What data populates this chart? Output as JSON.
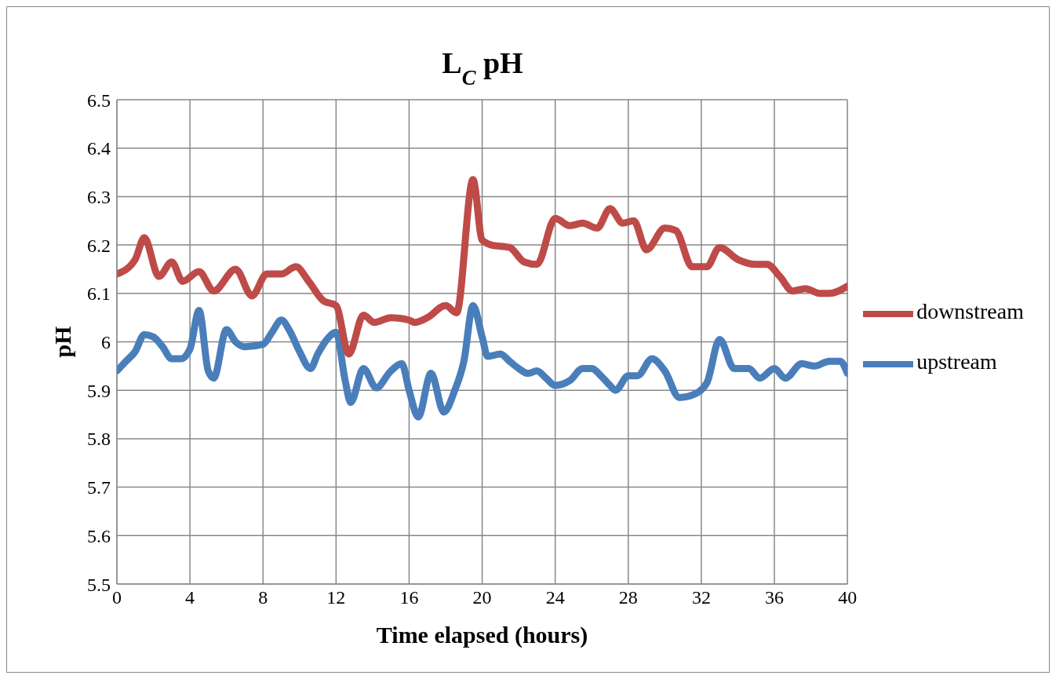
{
  "chart_data": {
    "type": "line",
    "title": "L$_{C}$ pH",
    "xlabel": "Time elapsed (hours)",
    "ylabel": "pH",
    "xlim": [
      0,
      40
    ],
    "xticks": [
      0,
      4,
      8,
      12,
      16,
      20,
      24,
      28,
      32,
      36,
      40
    ],
    "ylim": [
      5.5,
      6.5
    ],
    "yticks": [
      5.5,
      5.6,
      5.7,
      5.8,
      5.9,
      6,
      6.1,
      6.2,
      6.3,
      6.4,
      6.5
    ],
    "grid": true,
    "legend": "right",
    "marker": "none",
    "line_style": "solid",
    "series": [
      {
        "name": "upstream",
        "color": "#4a7ebb",
        "x": [
          0,
          0.5,
          1,
          1.5,
          2,
          2.5,
          3,
          3.5,
          4,
          4.5,
          5,
          5.3,
          6,
          6.5,
          7,
          8,
          8.5,
          9,
          9.5,
          10,
          10.6,
          11,
          11.5,
          12,
          12.5,
          12.8,
          13.5,
          14.2,
          15,
          15.6,
          16,
          16.5,
          17.2,
          17.9,
          18.5,
          19,
          19.5,
          20,
          20.3,
          21,
          21.5,
          22,
          22.5,
          23,
          23.5,
          24,
          24.8,
          25.5,
          26,
          26.5,
          27,
          27.3,
          28,
          28.5,
          29.3,
          30,
          30.8,
          31.5,
          32.3,
          33,
          33.8,
          34.6,
          35.2,
          36,
          36.6,
          37.5,
          38.2,
          39,
          39.6,
          40
        ],
        "values": [
          5.94,
          5.96,
          5.98,
          6.015,
          6.01,
          5.99,
          5.965,
          5.965,
          5.985,
          6.065,
          5.94,
          5.925,
          6.025,
          6.0,
          5.99,
          5.995,
          6.02,
          6.045,
          6.02,
          5.98,
          5.945,
          5.975,
          6.005,
          6.02,
          5.92,
          5.875,
          5.945,
          5.905,
          5.94,
          5.955,
          5.9,
          5.845,
          5.935,
          5.855,
          5.9,
          5.96,
          6.075,
          6.01,
          5.97,
          5.975,
          5.96,
          5.945,
          5.935,
          5.94,
          5.925,
          5.91,
          5.92,
          5.945,
          5.945,
          5.93,
          5.91,
          5.9,
          5.93,
          5.93,
          5.965,
          5.94,
          5.885,
          5.89,
          5.915,
          6.005,
          5.945,
          5.945,
          5.925,
          5.945,
          5.925,
          5.955,
          5.95,
          5.96,
          5.96,
          5.935
        ]
      },
      {
        "name": "downstream",
        "color": "#be4b48",
        "x": [
          0,
          1,
          1.5,
          2.3,
          3,
          3.6,
          4.5,
          5.3,
          6.5,
          7.4,
          8.2,
          9,
          9.8,
          10.5,
          11.3,
          12,
          12.7,
          13.5,
          14.1,
          15,
          16,
          16.3,
          17,
          18,
          18.6,
          19.5,
          20,
          20.5,
          21.5,
          22.3,
          23,
          24,
          24.8,
          25.5,
          26.3,
          27,
          27.7,
          28.3,
          29,
          30,
          30.6,
          31.5,
          32.3,
          33,
          34,
          35,
          35.6,
          36.3,
          37,
          37.7,
          38.5,
          39,
          40
        ],
        "values": [
          6.14,
          6.17,
          6.215,
          6.135,
          6.165,
          6.125,
          6.145,
          6.105,
          6.15,
          6.095,
          6.14,
          6.14,
          6.155,
          6.125,
          6.085,
          6.075,
          5.975,
          6.055,
          6.04,
          6.05,
          6.045,
          6.04,
          6.05,
          6.075,
          6.06,
          6.335,
          6.21,
          6.2,
          6.195,
          6.165,
          6.16,
          6.255,
          6.24,
          6.245,
          6.235,
          6.275,
          6.245,
          6.25,
          6.19,
          6.235,
          6.23,
          6.155,
          6.155,
          6.195,
          6.17,
          6.16,
          6.16,
          6.135,
          6.105,
          6.11,
          6.1,
          6.1,
          6.115
        ]
      }
    ]
  }
}
